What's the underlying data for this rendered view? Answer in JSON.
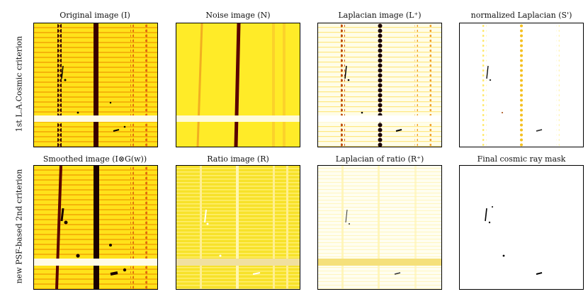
{
  "row_labels": [
    "1st L.A.Cosmic criterion",
    "new PSF-based 2nd criterion"
  ],
  "panels": [
    {
      "title": "Original image (I)"
    },
    {
      "title": "Noise image (N)"
    },
    {
      "title": "Laplacian image (L⁺)"
    },
    {
      "title": "normalized Laplacian (S')"
    },
    {
      "title": "Smoothed image (I⊗G(w))"
    },
    {
      "title": "Ratio image (R)"
    },
    {
      "title": "Laplacian of ratio (R⁺)"
    },
    {
      "title": "Final cosmic ray mask"
    }
  ]
}
